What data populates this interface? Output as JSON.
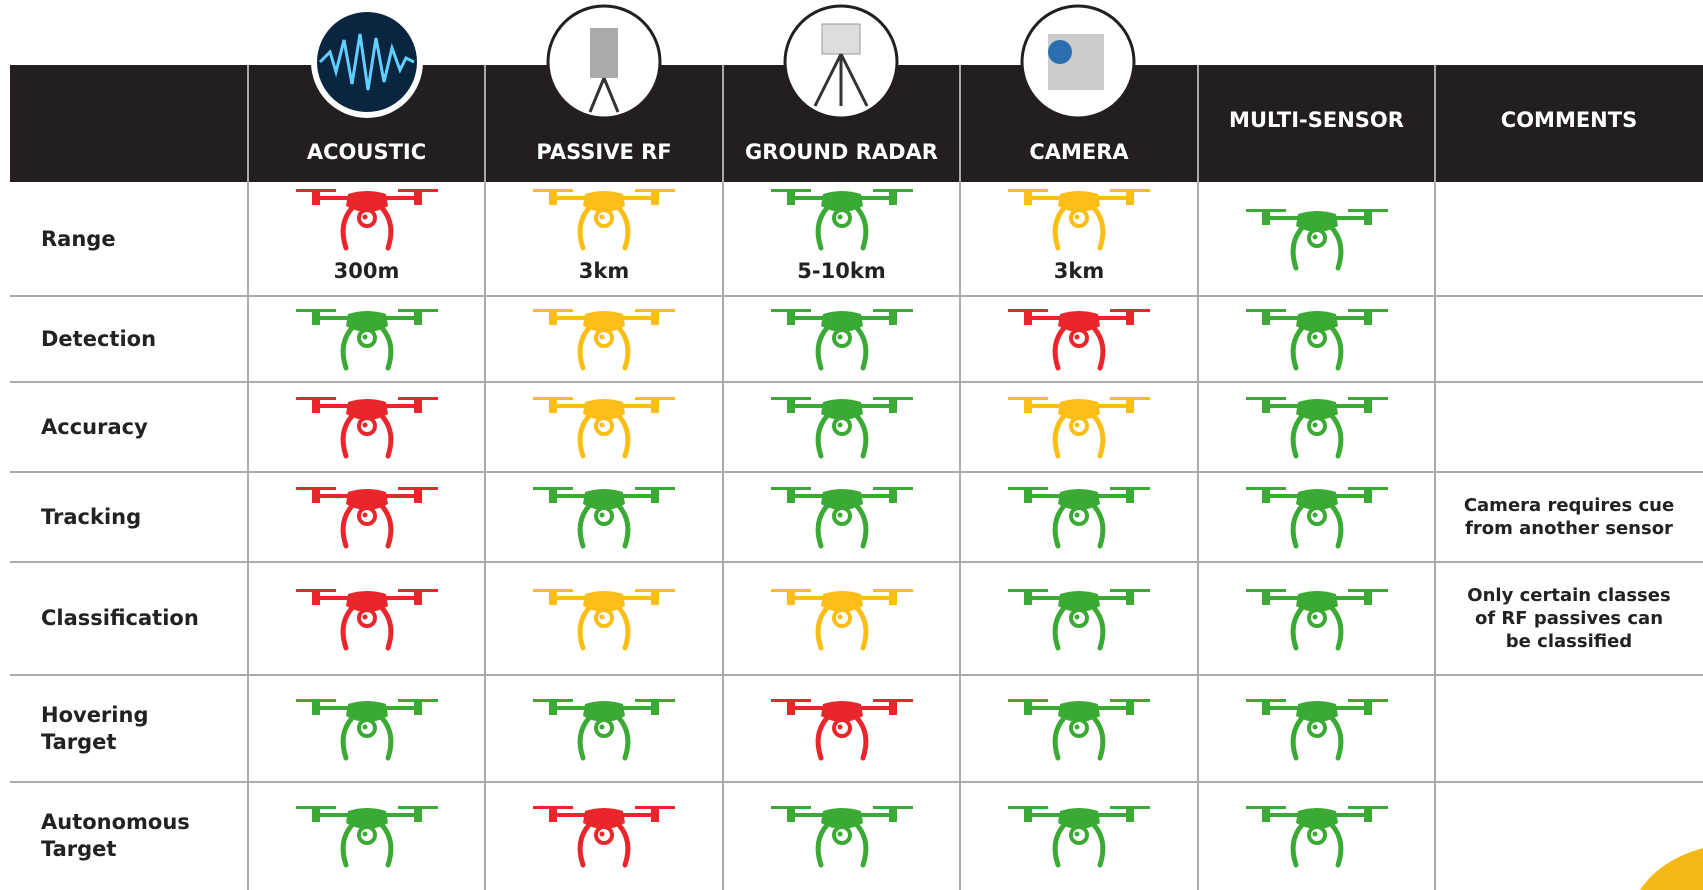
{
  "columns": [
    {
      "label": "ACOUSTIC"
    },
    {
      "label": "PASSIVE RF"
    },
    {
      "label": "GROUND RADAR"
    },
    {
      "label": "CAMERA"
    },
    {
      "label": "MULTI-SENSOR"
    },
    {
      "label": "COMMENTS"
    }
  ],
  "rows": [
    {
      "label": [
        "Range"
      ],
      "cells": [
        "#e8262b",
        "#fbbd16",
        "#3aaa35",
        "#fbbd16",
        "#3aaa35"
      ],
      "range_labels": [
        "300m",
        "3km",
        "5-10km",
        "3km"
      ]
    },
    {
      "label": [
        "Detection"
      ],
      "cells": [
        "#3aaa35",
        "#fbbd16",
        "#3aaa35",
        "#e8262b",
        "#3aaa35"
      ]
    },
    {
      "label": [
        "Accuracy"
      ],
      "cells": [
        "#e8262b",
        "#fbbd16",
        "#3aaa35",
        "#fbbd16",
        "#3aaa35"
      ]
    },
    {
      "label": [
        "Tracking"
      ],
      "cells": [
        "#e8262b",
        "#3aaa35",
        "#3aaa35",
        "#3aaa35",
        "#3aaa35"
      ],
      "comment": [
        "Camera requires cue",
        "from another sensor"
      ]
    },
    {
      "label": [
        "Classification"
      ],
      "cells": [
        "#e8262b",
        "#fbbd16",
        "#fbbd16",
        "#3aaa35",
        "#3aaa35"
      ],
      "comment": [
        "Only certain classes",
        "of RF passives can",
        "be classified"
      ]
    },
    {
      "label": [
        "Hovering",
        "Target"
      ],
      "cells": [
        "#3aaa35",
        "#3aaa35",
        "#e8262b",
        "#3aaa35",
        "#3aaa35"
      ]
    },
    {
      "label": [
        "Autonomous",
        "Target"
      ],
      "cells": [
        "#3aaa35",
        "#e8262b",
        "#3aaa35",
        "#3aaa35",
        "#3aaa35"
      ]
    }
  ]
}
